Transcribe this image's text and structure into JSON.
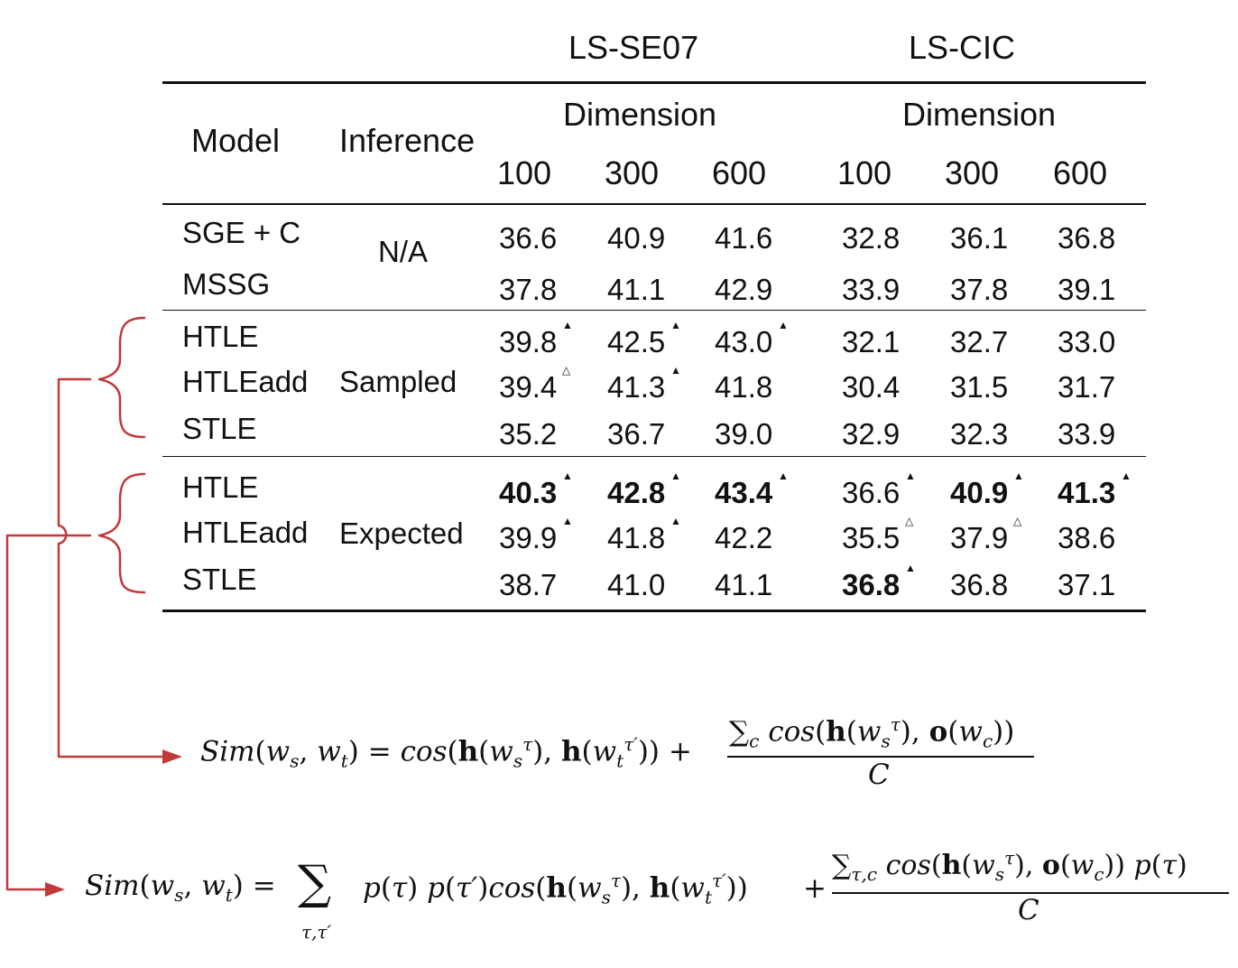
{
  "table": {
    "group_headers": [
      "LS-SE07",
      "LS-CIC"
    ],
    "dimension_label": "Dimension",
    "col_model": "Model",
    "col_inference": "Inference",
    "dims": [
      "100",
      "300",
      "600",
      "100",
      "300",
      "600"
    ],
    "sections": [
      {
        "inference": "N/A",
        "rows": [
          {
            "model": "SGE + C",
            "values": [
              "36.6",
              "40.9",
              "41.6",
              "32.8",
              "36.1",
              "36.8"
            ],
            "bold": [
              false,
              false,
              false,
              false,
              false,
              false
            ],
            "marks": [
              "",
              "",
              "",
              "",
              "",
              ""
            ]
          },
          {
            "model": "MSSG",
            "values": [
              "37.8",
              "41.1",
              "42.9",
              "33.9",
              "37.8",
              "39.1"
            ],
            "bold": [
              false,
              false,
              false,
              false,
              false,
              false
            ],
            "marks": [
              "",
              "",
              "",
              "",
              "",
              ""
            ]
          }
        ]
      },
      {
        "inference": "Sampled",
        "rows": [
          {
            "model": "HTLE",
            "values": [
              "39.8",
              "42.5",
              "43.0",
              "32.1",
              "32.7",
              "33.0"
            ],
            "bold": [
              false,
              false,
              false,
              false,
              false,
              false
            ],
            "marks": [
              "▲",
              "▲",
              "▲",
              "",
              "",
              ""
            ]
          },
          {
            "model": "HTLEadd",
            "values": [
              "39.4",
              "41.3",
              "41.8",
              "30.4",
              "31.5",
              "31.7"
            ],
            "bold": [
              false,
              false,
              false,
              false,
              false,
              false
            ],
            "marks": [
              "△",
              "▲",
              "",
              "",
              "",
              ""
            ]
          },
          {
            "model": "STLE",
            "values": [
              "35.2",
              "36.7",
              "39.0",
              "32.9",
              "32.3",
              "33.9"
            ],
            "bold": [
              false,
              false,
              false,
              false,
              false,
              false
            ],
            "marks": [
              "",
              "",
              "",
              "",
              "",
              ""
            ]
          }
        ]
      },
      {
        "inference": "Expected",
        "rows": [
          {
            "model": "HTLE",
            "values": [
              "40.3",
              "42.8",
              "43.4",
              "36.6",
              "40.9",
              "41.3"
            ],
            "bold": [
              true,
              true,
              true,
              false,
              true,
              true
            ],
            "marks": [
              "▲",
              "▲",
              "▲",
              "▲",
              "▲",
              "▲"
            ]
          },
          {
            "model": "HTLEadd",
            "values": [
              "39.9",
              "41.8",
              "42.2",
              "35.5",
              "37.9",
              "38.6"
            ],
            "bold": [
              false,
              false,
              false,
              false,
              false,
              false
            ],
            "marks": [
              "▲",
              "▲",
              "",
              "△",
              "△",
              ""
            ]
          },
          {
            "model": "STLE",
            "values": [
              "38.7",
              "41.0",
              "41.1",
              "36.8",
              "36.8",
              "37.1"
            ],
            "bold": [
              false,
              false,
              false,
              true,
              false,
              false
            ],
            "marks": [
              "",
              "",
              "",
              "▲",
              "",
              ""
            ]
          }
        ]
      }
    ]
  },
  "formulas": {
    "f1": {
      "lhs": "Sim",
      "lhs_args": "(w",
      "sub_s": "s",
      "sub_t": "t",
      "cos": "cos",
      "h": "h",
      "o": "o",
      "tau": "τ",
      "tau_prime": "τ′",
      "C": "C",
      "sum": "∑",
      "sub_c": "c"
    },
    "f2": {
      "sum_under": "τ,τ′",
      "sum_sub": "τ,c",
      "p": "p"
    }
  },
  "colors": {
    "connector": "#c0393b",
    "text": "#111111"
  }
}
